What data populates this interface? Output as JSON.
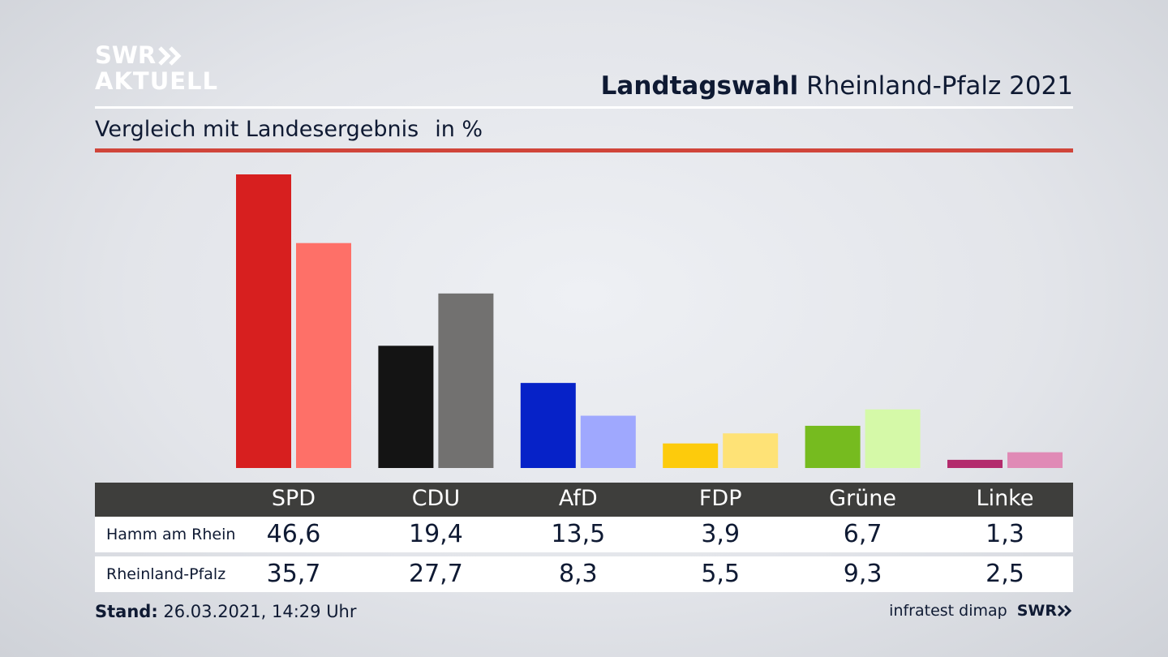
{
  "logo": {
    "line1": "SWR",
    "line2": "AKTUELL"
  },
  "header": {
    "title_bold": "Landtagswahl",
    "title_rest": "Rheinland-Pfalz 2021"
  },
  "subtitle": {
    "text": "Vergleich mit Landesergebnis",
    "unit": "in %"
  },
  "colors": {
    "rule_red": "#d0453a",
    "table_header": "#3e3e3c"
  },
  "chart_data": {
    "type": "bar",
    "categories": [
      "SPD",
      "CDU",
      "AfD",
      "FDP",
      "Grüne",
      "Linke"
    ],
    "series": [
      {
        "name": "Hamm am Rhein",
        "values": [
          46.6,
          19.4,
          13.5,
          3.9,
          6.7,
          1.3
        ],
        "colors": [
          "#d71f1f",
          "#141414",
          "#0622c8",
          "#fdcb0c",
          "#76bb1f",
          "#b32b6d"
        ]
      },
      {
        "name": "Rheinland-Pfalz",
        "values": [
          35.7,
          27.7,
          8.3,
          5.5,
          9.3,
          2.5
        ],
        "colors": [
          "#fe7068",
          "#727170",
          "#9fa8fe",
          "#fee276",
          "#d5f9a8",
          "#e08ab6"
        ]
      }
    ],
    "ylim": [
      0,
      46.6
    ]
  },
  "table": {
    "rows": [
      {
        "label": "Hamm am Rhein",
        "values": [
          "46,6",
          "19,4",
          "13,5",
          "3,9",
          "6,7",
          "1,3"
        ]
      },
      {
        "label": "Rheinland-Pfalz",
        "values": [
          "35,7",
          "27,7",
          "8,3",
          "5,5",
          "9,3",
          "2,5"
        ]
      }
    ]
  },
  "footer": {
    "stand_label": "Stand:",
    "stand_value": "26.03.2021, 14:29 Uhr",
    "source": "infratest dimap",
    "brand": "SWR"
  }
}
